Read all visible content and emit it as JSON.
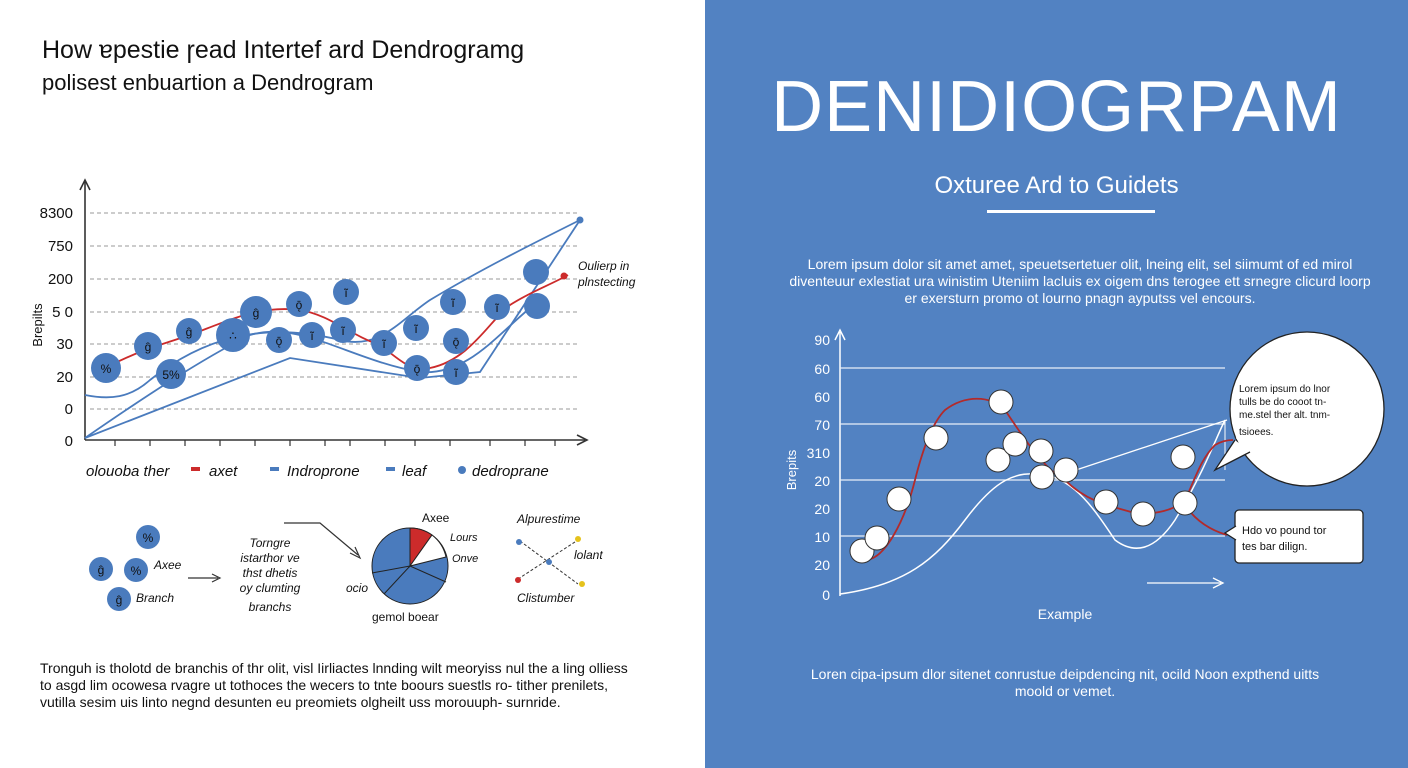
{
  "left": {
    "title_line1": "How ɐpestie ɼead Intertef ard Dendrogramg",
    "title_line2": "polisest enbuartion a Dendrogram",
    "chart": {
      "ylabel": "Brepilts",
      "yticks": [
        "8300",
        "750",
        "200",
        "5 0",
        "30",
        "20",
        "0",
        "0"
      ],
      "callout": [
        "Oulierp in",
        "plnstecting"
      ],
      "legend": [
        {
          "label": "olouoba ther",
          "color": ""
        },
        {
          "label": "axet",
          "color": "#cc2b2b"
        },
        {
          "label": "Indroprone",
          "color": "#4a7bbd"
        },
        {
          "label": "leaf",
          "color": "#4a7bbd"
        },
        {
          "label": "dedroprane",
          "color": "#4a7bbd"
        }
      ],
      "node_labels": [
        "%",
        "ĝ",
        "5%",
        "ĝ",
        "∴",
        "ĝ",
        "ǭ",
        "ǭ",
        "ĩ",
        "ĩ",
        "ĩ",
        "ĩ",
        "ĩ",
        "ǭ",
        "ĩ",
        "ǭ",
        "ĩ",
        "ĩ"
      ]
    },
    "diagram": {
      "nodes": [
        "%",
        "ĝ",
        "%",
        "ĝ"
      ],
      "axes_label": "Axee",
      "branch_label": "Branch",
      "note": [
        "Torngre",
        "istarthor ve",
        "thst dhetis",
        "oy clumting",
        "branchs"
      ],
      "pie_labels": {
        "top": "Axee",
        "r1": "Lours",
        "r2": "Onve",
        "left": "ocio",
        "bottom": "gemol boear"
      },
      "cluster": {
        "title": "Alpurestime",
        "right": "lolant",
        "bottom": "Clistumber"
      }
    },
    "body": "Tronguh is tholotd de branchis of thr olit, visl Iirliactes lnnding wilt meoryiss nul the a ling olliess to asgd lim ocowesa rvagre ut tothoces the wecers to tnte boours suestls ro- tither prenilets, vutilla sesim uis linto negnd desunten eu preomiets olgheilt uss morouuph- surnride."
  },
  "right": {
    "title": "DENIDIOGRPAM",
    "subtitle": "Oxturee Ard to Guidets",
    "intro": "Lorem ipsum dolor sit amet amet, speuetsertetuer olit, lneing elit, sel siimumt of ed mirol diventeuur exlestiat ura winistim Uteniim lacluis ex oigem dns terogee ett srnegre clicurd loorp er exersturn promo ot lourno pnagn ayputss vel encours.",
    "chart": {
      "ylabel": "Brepits",
      "yticks": [
        "90",
        "60",
        "60",
        "70",
        "310",
        "20",
        "20",
        "10",
        "20",
        "0"
      ],
      "xlabel": "Example",
      "bubble1": [
        "Lorem ipsum do lnor",
        "tulls be do cooot tn-",
        "me.stel ther alt. tnm-",
        "tsioees."
      ],
      "bubble2": [
        "Hdo vo pound tor",
        "tes bar dilign."
      ]
    },
    "footer": "Loren cipa-ipsum dlor sitenet conrustue deipdencing nit, ocild Noon expthend uitts moold or vemet.",
    "colors": {
      "background": "#5282c2",
      "curve": "#b32a2a"
    }
  }
}
